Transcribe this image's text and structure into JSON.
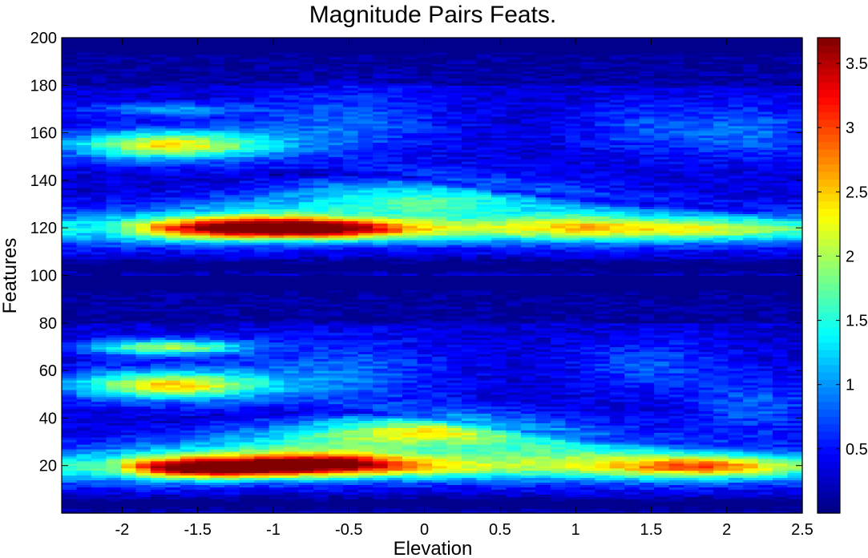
{
  "chart_data": {
    "type": "heatmap",
    "title": "Magnitude Pairs Feats.",
    "xlabel": "Elevation",
    "ylabel": "Features",
    "xlim": [
      -2.4,
      2.5
    ],
    "ylim": [
      0,
      200
    ],
    "x_ticks": [
      -2,
      -1.5,
      -1,
      -0.5,
      0,
      0.5,
      1,
      1.5,
      2,
      2.5
    ],
    "y_ticks": [
      20,
      40,
      60,
      80,
      100,
      120,
      140,
      160,
      180,
      200
    ],
    "x_tick_labels": [
      "-2",
      "-1.5",
      "-1",
      "-0.5",
      "0",
      "0.5",
      "1",
      "1.5",
      "2",
      "2.5"
    ],
    "y_tick_labels": [
      "20",
      "40",
      "60",
      "80",
      "100",
      "120",
      "140",
      "160",
      "180",
      "200"
    ],
    "colorbar": {
      "colormap": "jet",
      "clim": [
        0,
        3.7
      ],
      "ticks": [
        0.5,
        1,
        1.5,
        2,
        2.5,
        3,
        3.5
      ],
      "tick_labels": [
        "0.5",
        "1",
        "1.5",
        "2",
        "2.5",
        "3",
        "3.5"
      ]
    },
    "grid": {
      "n_cols": 50,
      "n_rows": 200,
      "row_axis": "Features 1-200",
      "col_axis": "Elevation -2.4 to 2.5"
    },
    "regions": [
      {
        "feature": 121,
        "elevation": -1.2,
        "value": 3.5
      },
      {
        "feature": 120,
        "elevation": -0.6,
        "value": 3.0
      },
      {
        "feature": 120,
        "elevation": 1.0,
        "value": 2.0
      },
      {
        "feature": 155,
        "elevation": -1.7,
        "value": 2.3
      },
      {
        "feature": 130,
        "elevation": 0.0,
        "value": 1.5
      },
      {
        "feature": 19,
        "elevation": -1.4,
        "value": 3.6
      },
      {
        "feature": 22,
        "elevation": -0.6,
        "value": 3.1
      },
      {
        "feature": 20,
        "elevation": 1.8,
        "value": 2.2
      },
      {
        "feature": 34,
        "elevation": 0.0,
        "value": 2.3
      },
      {
        "feature": 54,
        "elevation": -1.7,
        "value": 2.5
      },
      {
        "feature": 70,
        "elevation": -1.7,
        "value": 2.2
      }
    ]
  }
}
